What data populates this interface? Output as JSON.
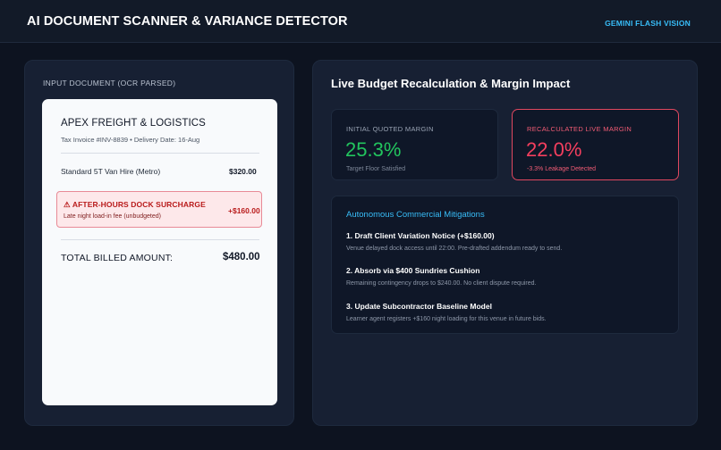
{
  "header": {
    "title": "AI DOCUMENT SCANNER & VARIANCE DETECTOR",
    "engine": "GEMINI FLASH VISION"
  },
  "input_panel": {
    "label": "INPUT DOCUMENT (OCR PARSED)",
    "document": {
      "vendor": "APEX FREIGHT & LOGISTICS",
      "meta": "Tax Invoice #INV-8839 • Delivery Date: 16-Aug",
      "line_items": [
        {
          "label": "Standard 5T Van Hire (Metro)",
          "amount": "$320.00"
        }
      ],
      "variance": {
        "title": "⚠ AFTER-HOURS DOCK SURCHARGE",
        "note": "Late night load-in fee (unbudgeted)",
        "amount": "+$160.00"
      },
      "total_label": "TOTAL BILLED AMOUNT:",
      "total_amount": "$480.00"
    }
  },
  "impact_panel": {
    "title": "Live Budget Recalculation & Margin Impact",
    "kpis": {
      "initial": {
        "label": "INITIAL QUOTED MARGIN",
        "value": "25.3%",
        "sub": "Target Floor Satisfied",
        "color": "#22c55e"
      },
      "live": {
        "label": "RECALCULATED LIVE MARGIN",
        "value": "22.0%",
        "sub": "-3.3% Leakage Detected",
        "color": "#f43f5e"
      }
    },
    "mitigations": {
      "title": "Autonomous Commercial Mitigations",
      "items": [
        {
          "title": "1. Draft Client Variation Notice (+$160.00)",
          "desc": "Venue delayed dock access until 22:00. Pre-drafted addendum ready to send."
        },
        {
          "title": "2. Absorb via $400 Sundries Cushion",
          "desc": "Remaining contingency drops to $240.00. No client dispute required."
        },
        {
          "title": "3. Update Subcontractor Baseline Model",
          "desc": "Learner agent registers +$160 night loading for this venue in future bids."
        }
      ]
    }
  }
}
